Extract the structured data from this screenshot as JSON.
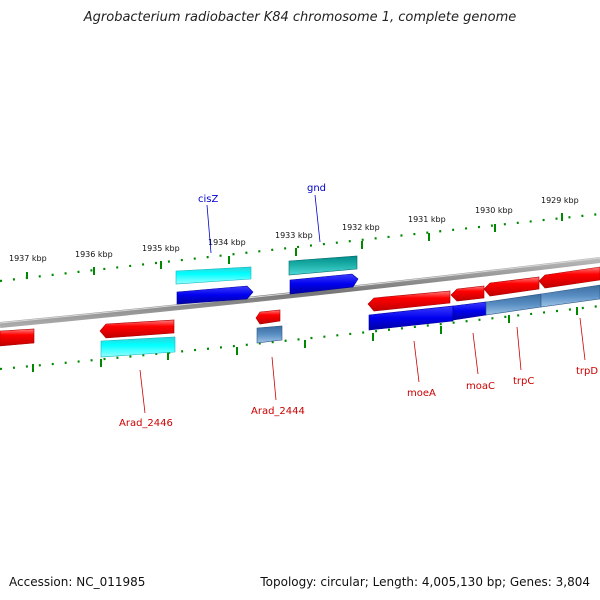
{
  "title": "Agrobacterium radiobacter K84 chromosome 1, complete genome",
  "footer": {
    "accession": "Accession: NC_011985",
    "summary": "Topology: circular; Length: 4,005,130 bp; Genes: 3,804"
  },
  "colors": {
    "forward_gene": "#ff0000",
    "reverse_gene": "#0000ee",
    "forward_cds": "#00e5ee",
    "reverse_cds": "#008b8b",
    "pseudo": "#4f81bd",
    "label_top": "#0000cc",
    "label_bottom": "#cc0000",
    "ticks": "#007700"
  },
  "scale_labels": [
    "1937 kbp",
    "1936 kbp",
    "1935 kbp",
    "1934 kbp",
    "1933 kbp",
    "1932 kbp",
    "1931 kbp",
    "1930 kbp",
    "1929 kbp"
  ],
  "gene_labels_top": [
    "cisZ",
    "gnd"
  ],
  "gene_labels_bottom": [
    "Arad_2446",
    "Arad_2444",
    "moeA",
    "moaC",
    "trpC",
    "trpD"
  ]
}
